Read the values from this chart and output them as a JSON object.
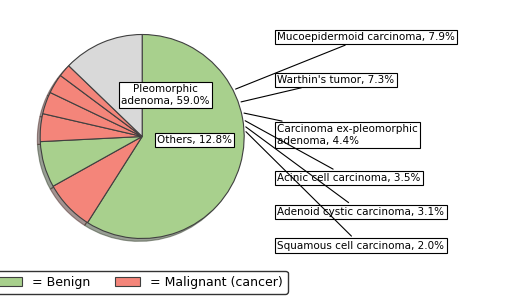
{
  "slices": [
    {
      "label": "Pleomorphic\nadenoma, 59.0%",
      "value": 59.0,
      "color": "#a8d08d",
      "benign": true
    },
    {
      "label": "Mucoepidermoid carcinoma, 7.9%",
      "value": 7.9,
      "color": "#f4857a",
      "benign": false
    },
    {
      "label": "Warthin's tumor, 7.3%",
      "value": 7.3,
      "color": "#a8d08d",
      "benign": true
    },
    {
      "label": "Carcinoma ex-pleomorphic\nadenoma, 4.4%",
      "value": 4.4,
      "color": "#f4857a",
      "benign": false
    },
    {
      "label": "Acinic cell carcinoma, 3.5%",
      "value": 3.5,
      "color": "#f4857a",
      "benign": false
    },
    {
      "label": "Adenoid cystic carcinoma, 3.1%",
      "value": 3.1,
      "color": "#f4857a",
      "benign": false
    },
    {
      "label": "Squamous cell carcinoma, 2.0%",
      "value": 2.0,
      "color": "#f4857a",
      "benign": false
    },
    {
      "label": "Others, 12.8%",
      "value": 12.8,
      "color": "#d9d9d9",
      "benign": false
    }
  ],
  "legend_benign_color": "#a8d08d",
  "legend_malignant_color": "#f4857a",
  "edge_color": "#404040",
  "shadow_color": "#5a5a5a",
  "background_color": "#ffffff",
  "title_fontsize": 14,
  "label_fontsize": 7.5,
  "legend_fontsize": 9
}
